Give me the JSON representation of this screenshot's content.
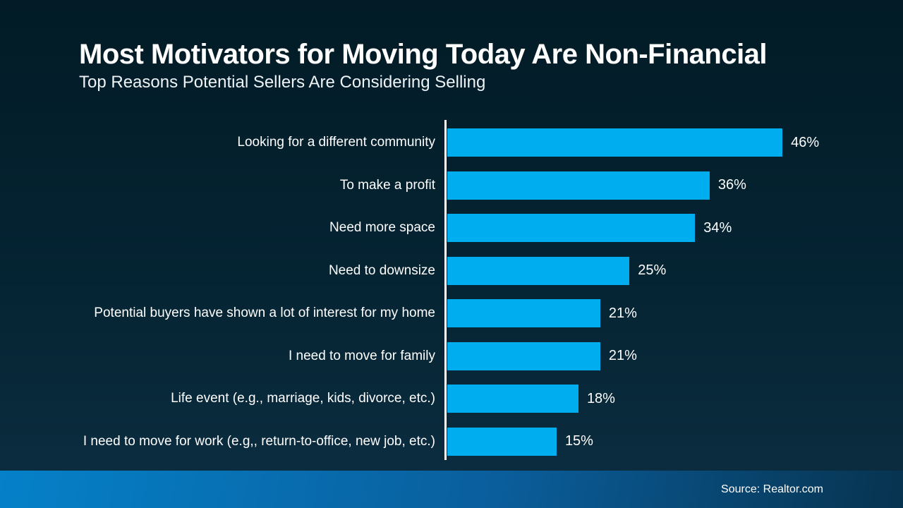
{
  "slide": {
    "title": "Most Motivators for Moving Today Are Non-Financial",
    "subtitle": "Top Reasons Potential Sellers Are Considering Selling",
    "source": "Source: Realtor.com"
  },
  "colors": {
    "background_top": "#021B26",
    "background_bottom": "#0C2E41",
    "bar": "#00AEEF",
    "axis": "#FFFFFF",
    "footer_left": "#0581C9",
    "footer_right": "#07334F",
    "text": "#FFFFFF"
  },
  "chart_data": {
    "type": "bar",
    "orientation": "horizontal",
    "title": "Most Motivators for Moving Today Are Non-Financial",
    "subtitle": "Top Reasons Potential Sellers Are Considering Selling",
    "categories": [
      "Looking for a different community",
      "To make a profit",
      "Need more space",
      "Need to downsize",
      "Potential buyers have shown a lot of interest for my home",
      "I need to move for family",
      "Life event (e.g., marriage, kids, divorce, etc.)",
      "I need to move for work (e.g,, return-to-office, new job, etc.)"
    ],
    "values": [
      46,
      36,
      34,
      25,
      21,
      21,
      18,
      15
    ],
    "value_labels": [
      "46%",
      "36%",
      "34%",
      "25%",
      "21%",
      "21%",
      "18%",
      "15%"
    ],
    "xlabel": "",
    "ylabel": "",
    "xlim": [
      0,
      48
    ],
    "grid": false,
    "legend": false,
    "data_labels_position": "outside-end",
    "source": "Source: Realtor.com"
  }
}
